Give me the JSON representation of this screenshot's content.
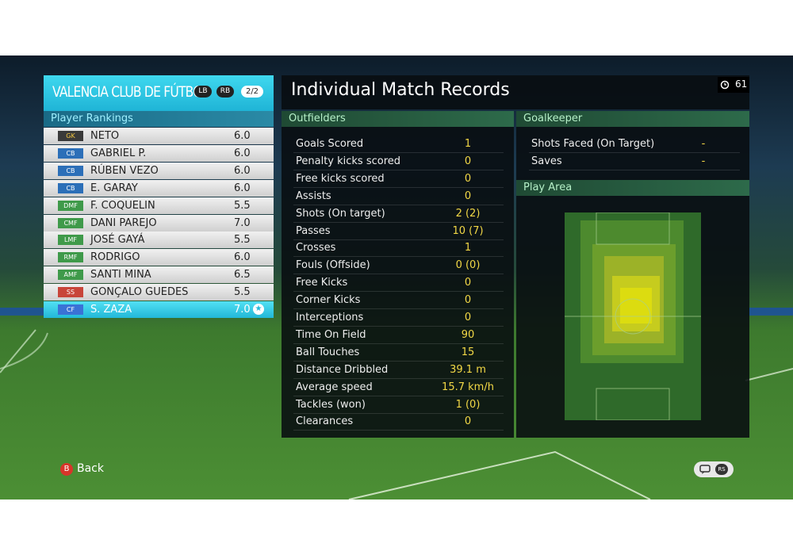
{
  "header": {
    "team": "VALENCIA CLUB DE FÚTBOL",
    "buttons": [
      "LB",
      "RB"
    ],
    "page": "2/2"
  },
  "rankings": {
    "title": "Player Rankings",
    "players": [
      {
        "position": "GK",
        "name": "NETO",
        "rating": "6.0"
      },
      {
        "position": "CB",
        "name": "GABRIEL P.",
        "rating": "6.0"
      },
      {
        "position": "CB",
        "name": "RÚBEN VEZO",
        "rating": "6.0"
      },
      {
        "position": "CB",
        "name": "E. GARAY",
        "rating": "6.0"
      },
      {
        "position": "DMF",
        "name": "F. COQUELIN",
        "rating": "5.5"
      },
      {
        "position": "CMF",
        "name": "DANI PAREJO",
        "rating": "7.0"
      },
      {
        "position": "LMF",
        "name": "JOSÉ GAYÁ",
        "rating": "5.5"
      },
      {
        "position": "RMF",
        "name": "RODRIGO",
        "rating": "6.0"
      },
      {
        "position": "AMF",
        "name": "SANTI MINA",
        "rating": "6.5"
      },
      {
        "position": "SS",
        "name": "GONÇALO GUEDES",
        "rating": "5.5"
      },
      {
        "position": "CF",
        "name": "S. ZAZA",
        "rating": "7.0"
      }
    ]
  },
  "records": {
    "title": "Individual Match Records",
    "clock": "61",
    "outfielders": {
      "title": "Outfielders",
      "rows": [
        [
          "Goals Scored",
          "1"
        ],
        [
          "Penalty kicks scored",
          "0"
        ],
        [
          "Free kicks scored",
          "0"
        ],
        [
          "Assists",
          "0"
        ],
        [
          "Shots (On target)",
          "2 (2)"
        ],
        [
          "Passes",
          "10 (7)"
        ],
        [
          "Crosses",
          "1"
        ],
        [
          "Fouls (Offside)",
          "0 (0)"
        ],
        [
          "Free Kicks",
          "0"
        ],
        [
          "Corner Kicks",
          "0"
        ],
        [
          "Interceptions",
          "0"
        ],
        [
          "Time On Field",
          "90"
        ],
        [
          "Ball Touches",
          "15"
        ],
        [
          "Distance Dribbled",
          "39.1 m"
        ],
        [
          "Average speed",
          "15.7 km/h"
        ],
        [
          "Tackles (won)",
          "1 (0)"
        ],
        [
          "Clearances",
          "0"
        ]
      ]
    },
    "goalkeeper": {
      "title": "Goalkeeper",
      "rows": [
        [
          "Shots Faced (On Target)",
          "-"
        ],
        [
          "Saves",
          "-"
        ]
      ]
    },
    "play_area": {
      "title": "Play Area"
    }
  },
  "footer": {
    "back_button": "B",
    "back": "Back",
    "icon_label": "RS"
  }
}
